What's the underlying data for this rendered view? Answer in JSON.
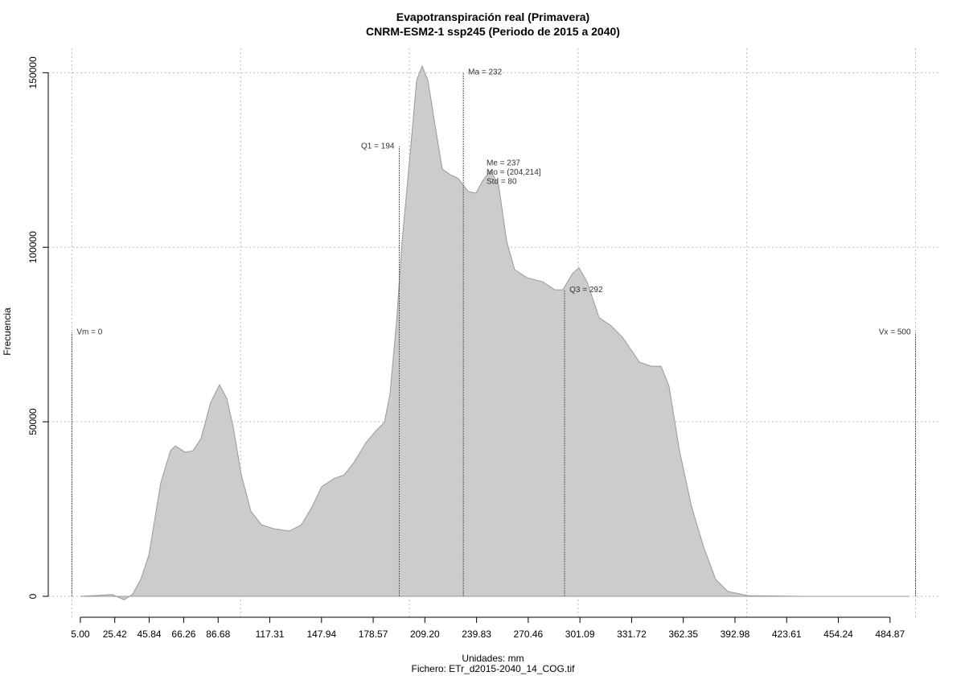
{
  "chart_data": {
    "type": "area",
    "title": "Evapotranspiración real (Primavera)",
    "subtitle": "CNRM-ESM2-1 ssp245 (Periodo de 2015 a 2040)",
    "x_label": "Unidades: mm",
    "footer": "Fichero: ETr_d2015-2040_14_COG.tif",
    "y_label": "Frecuencia",
    "xlim": [
      -14,
      515
    ],
    "ylim": [
      -6000,
      157000
    ],
    "xticks": [
      {
        "value": 5,
        "label": "5.00"
      },
      {
        "value": 25.42,
        "label": "25.42"
      },
      {
        "value": 45.84,
        "label": "45.84"
      },
      {
        "value": 66.26,
        "label": "66.26"
      },
      {
        "value": 86.68,
        "label": "86.68"
      },
      {
        "value": 117.31,
        "label": "117.31"
      },
      {
        "value": 147.94,
        "label": "147.94"
      },
      {
        "value": 178.57,
        "label": "178.57"
      },
      {
        "value": 209.2,
        "label": "209.20"
      },
      {
        "value": 239.83,
        "label": "239.83"
      },
      {
        "value": 270.46,
        "label": "270.46"
      },
      {
        "value": 301.09,
        "label": "301.09"
      },
      {
        "value": 331.72,
        "label": "331.72"
      },
      {
        "value": 362.35,
        "label": "362.35"
      },
      {
        "value": 392.98,
        "label": "392.98"
      },
      {
        "value": 423.61,
        "label": "423.61"
      },
      {
        "value": 454.24,
        "label": "454.24"
      },
      {
        "value": 484.87,
        "label": "484.87"
      }
    ],
    "yticks": [
      0,
      50000,
      100000,
      150000
    ],
    "x_grid": [
      0,
      100,
      200,
      300,
      400,
      500
    ],
    "grid": true,
    "color": "#cccccc",
    "x": [
      5,
      24,
      31,
      36,
      40.8,
      45.6,
      52.7,
      58.4,
      61.3,
      67,
      71.8,
      76.5,
      82.3,
      87.5,
      91.8,
      95.6,
      100.4,
      106.1,
      112.3,
      119.4,
      129,
      136,
      142.3,
      148,
      155.2,
      161.4,
      167.1,
      174.2,
      180.4,
      185.2,
      188.5,
      192.4,
      195.7,
      200.5,
      204.3,
      207.6,
      211,
      214.8,
      219.5,
      224.3,
      229,
      234.8,
      239.5,
      243.4,
      248.1,
      252.9,
      257.7,
      262.4,
      269.6,
      279.1,
      286.2,
      291,
      296.7,
      300.5,
      305.3,
      312.5,
      319.6,
      326.7,
      336.3,
      343.4,
      349.2,
      353.9,
      360.1,
      367.3,
      374.4,
      381.6,
      388.7,
      400.6,
      434,
      496
    ],
    "values": [
      0,
      500,
      -1000,
      600,
      4800,
      11750,
      32500,
      41700,
      43100,
      41300,
      41700,
      45200,
      55600,
      60600,
      56700,
      48600,
      34800,
      24400,
      20500,
      19400,
      18700,
      20500,
      25600,
      31400,
      33700,
      34800,
      38300,
      44000,
      47500,
      49800,
      57900,
      78600,
      101700,
      127000,
      147800,
      151900,
      147800,
      136300,
      122400,
      120800,
      119700,
      116000,
      115500,
      119000,
      122000,
      117800,
      101700,
      93600,
      91300,
      90100,
      87800,
      87800,
      92500,
      94100,
      90100,
      79800,
      77500,
      74000,
      67100,
      65900,
      65900,
      60200,
      41700,
      25600,
      14100,
      4800,
      1400,
      200,
      0,
      0
    ],
    "stat_lines": [
      {
        "label": "Vm = 0",
        "x": 0,
        "y": 75600
      },
      {
        "label": "Q1 = 194",
        "x": 194,
        "y": 128900
      },
      {
        "label": "Ma = 232",
        "x": 232,
        "y": 150100
      },
      {
        "label": "Q3 = 292",
        "x": 292,
        "y": 87800
      },
      {
        "label": "Vx = 500",
        "x": 500,
        "y": 75600
      }
    ],
    "stats_block": [
      "Me = 237",
      "Mo = (204,214]",
      "Std = 80"
    ]
  }
}
